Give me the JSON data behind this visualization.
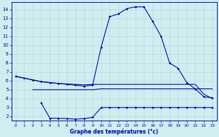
{
  "xlabel": "Graphe des températures (°c)",
  "bg_color": "#d0eef0",
  "grid_color": "#b8d8dc",
  "line_color": "#0000aa",
  "x_ticks": [
    0,
    1,
    2,
    3,
    4,
    5,
    6,
    7,
    8,
    9,
    10,
    11,
    12,
    13,
    14,
    15,
    16,
    17,
    18,
    19,
    20,
    21,
    22,
    23
  ],
  "y_ticks": [
    2,
    3,
    4,
    5,
    6,
    7,
    8,
    9,
    10,
    11,
    12,
    13,
    14
  ],
  "xlim": [
    -0.5,
    23.5
  ],
  "ylim": [
    1.5,
    14.8
  ],
  "curve1_x": [
    0,
    1,
    2,
    3,
    4,
    5,
    6,
    7,
    8,
    9,
    10,
    11,
    12,
    13,
    14,
    15,
    16,
    17,
    18,
    19,
    20,
    21,
    22,
    23
  ],
  "curve1_y": [
    6.5,
    6.3,
    6.1,
    5.9,
    5.8,
    5.7,
    5.6,
    5.5,
    5.4,
    5.5,
    9.8,
    13.2,
    13.5,
    14.1,
    14.3,
    14.3,
    12.7,
    11.0,
    8.0,
    7.4,
    5.8,
    5.1,
    4.2,
    4.1
  ],
  "curve2_x": [
    2,
    3,
    4,
    5,
    6,
    7,
    8,
    9,
    10,
    11,
    12,
    13,
    14,
    15,
    16,
    17,
    18,
    19,
    20,
    21,
    22,
    23
  ],
  "curve2_y": [
    5.0,
    5.0,
    5.0,
    5.0,
    5.0,
    5.0,
    5.0,
    5.0,
    5.1,
    5.1,
    5.1,
    5.1,
    5.1,
    5.1,
    5.1,
    5.1,
    5.1,
    5.1,
    5.1,
    5.1,
    5.1,
    5.1
  ],
  "curve3_x": [
    0,
    1,
    2,
    3,
    4,
    5,
    6,
    7,
    8,
    9,
    10,
    11,
    12,
    13,
    14,
    15,
    16,
    17,
    18,
    19,
    20,
    21,
    22,
    23
  ],
  "curve3_y": [
    6.5,
    6.3,
    6.1,
    5.9,
    5.8,
    5.7,
    5.65,
    5.6,
    5.55,
    5.6,
    5.6,
    5.6,
    5.6,
    5.6,
    5.6,
    5.6,
    5.6,
    5.6,
    5.6,
    5.6,
    5.6,
    5.6,
    4.5,
    4.0
  ],
  "curve4_x": [
    3,
    4,
    5,
    6,
    7,
    8,
    9,
    10,
    11,
    12,
    13,
    14,
    15,
    16,
    17,
    18,
    19,
    20,
    21,
    22,
    23
  ],
  "curve4_y": [
    3.5,
    1.8,
    1.8,
    1.75,
    1.7,
    1.75,
    1.9,
    3.0,
    3.0,
    3.0,
    3.0,
    3.0,
    3.0,
    3.0,
    3.0,
    3.0,
    3.0,
    3.0,
    3.0,
    3.0,
    3.0
  ]
}
